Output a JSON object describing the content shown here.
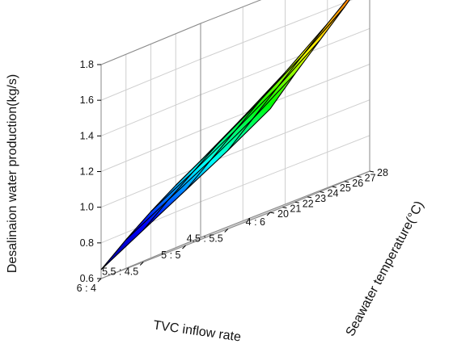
{
  "chart_data": {
    "type": "surface3d",
    "title": "",
    "xlabel": "TVC inflow rate",
    "ylabel": "Seawater temperature(°C)",
    "zlabel": "Desalinaion water production(kg/s)",
    "x_categories": [
      "6 : 4",
      "5.5 : 4.5",
      "5 : 5",
      "4.5 : 5.5",
      "4 : 6"
    ],
    "y_ticks": [
      20,
      21,
      22,
      23,
      24,
      25,
      26,
      27,
      28
    ],
    "y_range": [
      20,
      28
    ],
    "y_grid_values": [
      20,
      22,
      24,
      26,
      28
    ],
    "z_ticks": [
      0.6,
      0.8,
      1.0,
      1.2,
      1.4,
      1.6,
      1.8
    ],
    "z_range": [
      0.6,
      1.8
    ],
    "surface_values": [
      [
        0.65,
        0.78,
        0.91,
        1.04,
        1.18
      ],
      [
        0.76,
        0.89,
        1.02,
        1.16,
        1.32
      ],
      [
        0.86,
        0.99,
        1.13,
        1.28,
        1.45
      ],
      [
        0.95,
        1.09,
        1.24,
        1.4,
        1.58
      ],
      [
        1.03,
        1.18,
        1.34,
        1.52,
        1.72
      ]
    ],
    "colormap": [
      "#00007f",
      "#0000ff",
      "#00ffff",
      "#00ff00",
      "#ffff00",
      "#ff7f00",
      "#ff0000"
    ],
    "grid": true
  }
}
